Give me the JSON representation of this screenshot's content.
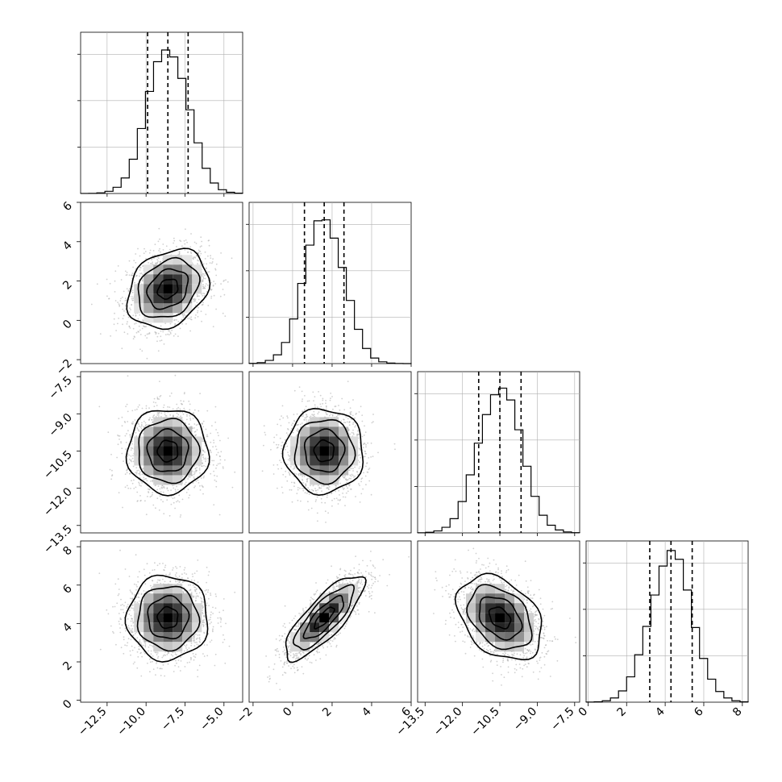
{
  "chart_data": {
    "type": "scatter",
    "description_type": "corner",
    "colors": {
      "points": "#b0b0b0",
      "hist": "#000000",
      "grid": "#b0b0b0",
      "density": "#000000"
    },
    "grid": true,
    "parameters": [
      {
        "mean": -8.6,
        "std": 1.3,
        "range": [
          -14.2,
          -3.8
        ],
        "ticks": [
          -12.5,
          -10.0,
          -7.5,
          -5.0
        ],
        "tick_labels": [
          "−12.5",
          "−10.0",
          "−7.5",
          "−5.0"
        ],
        "quantiles": [
          -9.9,
          -8.6,
          -7.3
        ]
      },
      {
        "mean": 1.6,
        "std": 1.0,
        "range": [
          -2.2,
          6.0
        ],
        "ticks": [
          -2,
          0,
          2,
          4,
          6
        ],
        "tick_labels": [
          "−2",
          "0",
          "2",
          "4",
          "6"
        ],
        "quantiles": [
          0.6,
          1.6,
          2.6
        ]
      },
      {
        "mean": -10.5,
        "std": 0.85,
        "range": [
          -13.8,
          -7.3
        ],
        "ticks": [
          -13.5,
          -12.0,
          -10.5,
          -9.0,
          -7.5
        ],
        "tick_labels": [
          "−13.5",
          "−12.0",
          "−10.5",
          "−9.0",
          "−7.5"
        ],
        "quantiles": [
          -11.35,
          -10.5,
          -9.65
        ]
      },
      {
        "mean": 4.3,
        "std": 1.1,
        "range": [
          -0.1,
          8.3
        ],
        "ticks": [
          0,
          2,
          4,
          6,
          8
        ],
        "tick_labels": [
          "0",
          "2",
          "4",
          "6",
          "8"
        ],
        "quantiles": [
          3.2,
          4.3,
          5.4
        ]
      }
    ],
    "correlations": [
      {
        "pair": [
          0,
          1
        ],
        "rho": 0.25
      },
      {
        "pair": [
          0,
          2
        ],
        "rho": 0.0
      },
      {
        "pair": [
          1,
          2
        ],
        "rho": 0.0
      },
      {
        "pair": [
          0,
          3
        ],
        "rho": 0.0
      },
      {
        "pair": [
          1,
          3
        ],
        "rho": 0.8
      },
      {
        "pair": [
          2,
          3
        ],
        "rho": -0.35
      }
    ],
    "contour_levels_sigma": [
      0.5,
      1.0,
      1.5,
      2.0
    ],
    "n_samples_shown": 1800
  }
}
